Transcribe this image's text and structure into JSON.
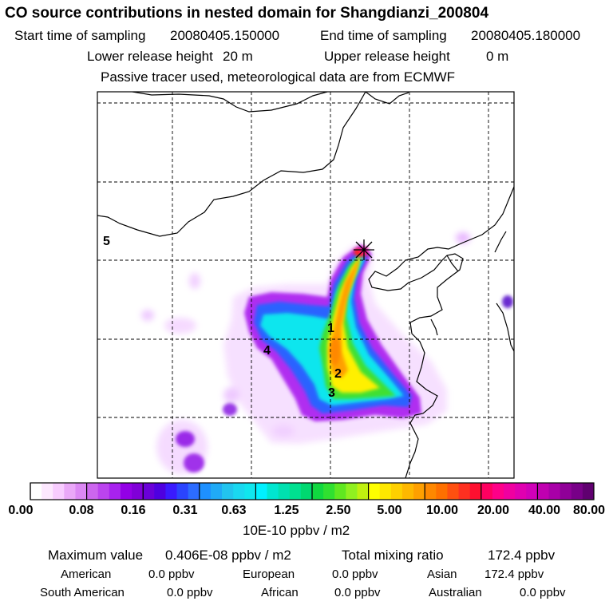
{
  "header": {
    "title": "CO  source contributions in nested domain for Shangdianzi_200804",
    "start_label": "Start time of sampling",
    "start_value": "20080405.150000",
    "end_label": "End time of sampling",
    "end_value": "20080405.180000",
    "lower_label": "Lower release height",
    "lower_value": "20 m",
    "upper_label": "Upper release height",
    "upper_value": "0 m",
    "note": "Passive tracer used, meteorological data are from ECMWF"
  },
  "map": {
    "region_labels": [
      "1",
      "2",
      "3",
      "4",
      "5"
    ],
    "receptor_marker": "star-cross-icon"
  },
  "colorbar": {
    "tick_labels": [
      "0.00",
      "0.08",
      "0.16",
      "0.31",
      "0.63",
      "1.25",
      "2.50",
      "5.00",
      "10.00",
      "20.00",
      "40.00",
      "80.00"
    ],
    "units": "10E-10 ppbv / m2",
    "colors": [
      [
        "#ffffff",
        "#fde8ff",
        "#f8ccff",
        "#eaa8f8",
        "#dc88f4"
      ],
      [
        "#cc66ee",
        "#bb44ee",
        "#a822ee",
        "#9300e6",
        "#8000d8"
      ],
      [
        "#6a00d8",
        "#4e00e0",
        "#3a1aff",
        "#2a44ff",
        "#2c6cff"
      ],
      [
        "#1e90ff",
        "#20aaf6",
        "#22c4ee",
        "#1ad8f0",
        "#10e6ee"
      ],
      [
        "#00f0ff",
        "#00e6d0",
        "#00e0b0",
        "#00e090",
        "#00d870"
      ],
      [
        "#10d840",
        "#30e030",
        "#60e820",
        "#90f020",
        "#c0f010"
      ],
      [
        "#ffff00",
        "#ffe800",
        "#ffd000",
        "#ffb800",
        "#ffa000"
      ],
      [
        "#ff8800",
        "#ff7000",
        "#ff5010",
        "#ff3020",
        "#ff1030"
      ],
      [
        "#ff0060",
        "#ff0088",
        "#f000a0",
        "#e000b0",
        "#d000b8"
      ],
      [
        "#c000b0",
        "#a800a8",
        "#900098",
        "#780088",
        "#600070"
      ]
    ]
  },
  "stats": {
    "max_label": "Maximum value",
    "max_value": "0.406E-08 ppbv / m2",
    "total_label": "Total mixing ratio",
    "total_value": "172.4 ppbv",
    "american_label": "American",
    "american_value": "0.0 ppbv",
    "european_label": "European",
    "european_value": "0.0 ppbv",
    "asian_label": "Asian",
    "asian_value": "172.4 ppbv",
    "south_american_label": "South American",
    "south_american_value": "0.0 ppbv",
    "african_label": "African",
    "african_value": "0.0 ppbv",
    "australian_label": "Australian",
    "australian_value": "0.0 ppbv"
  }
}
